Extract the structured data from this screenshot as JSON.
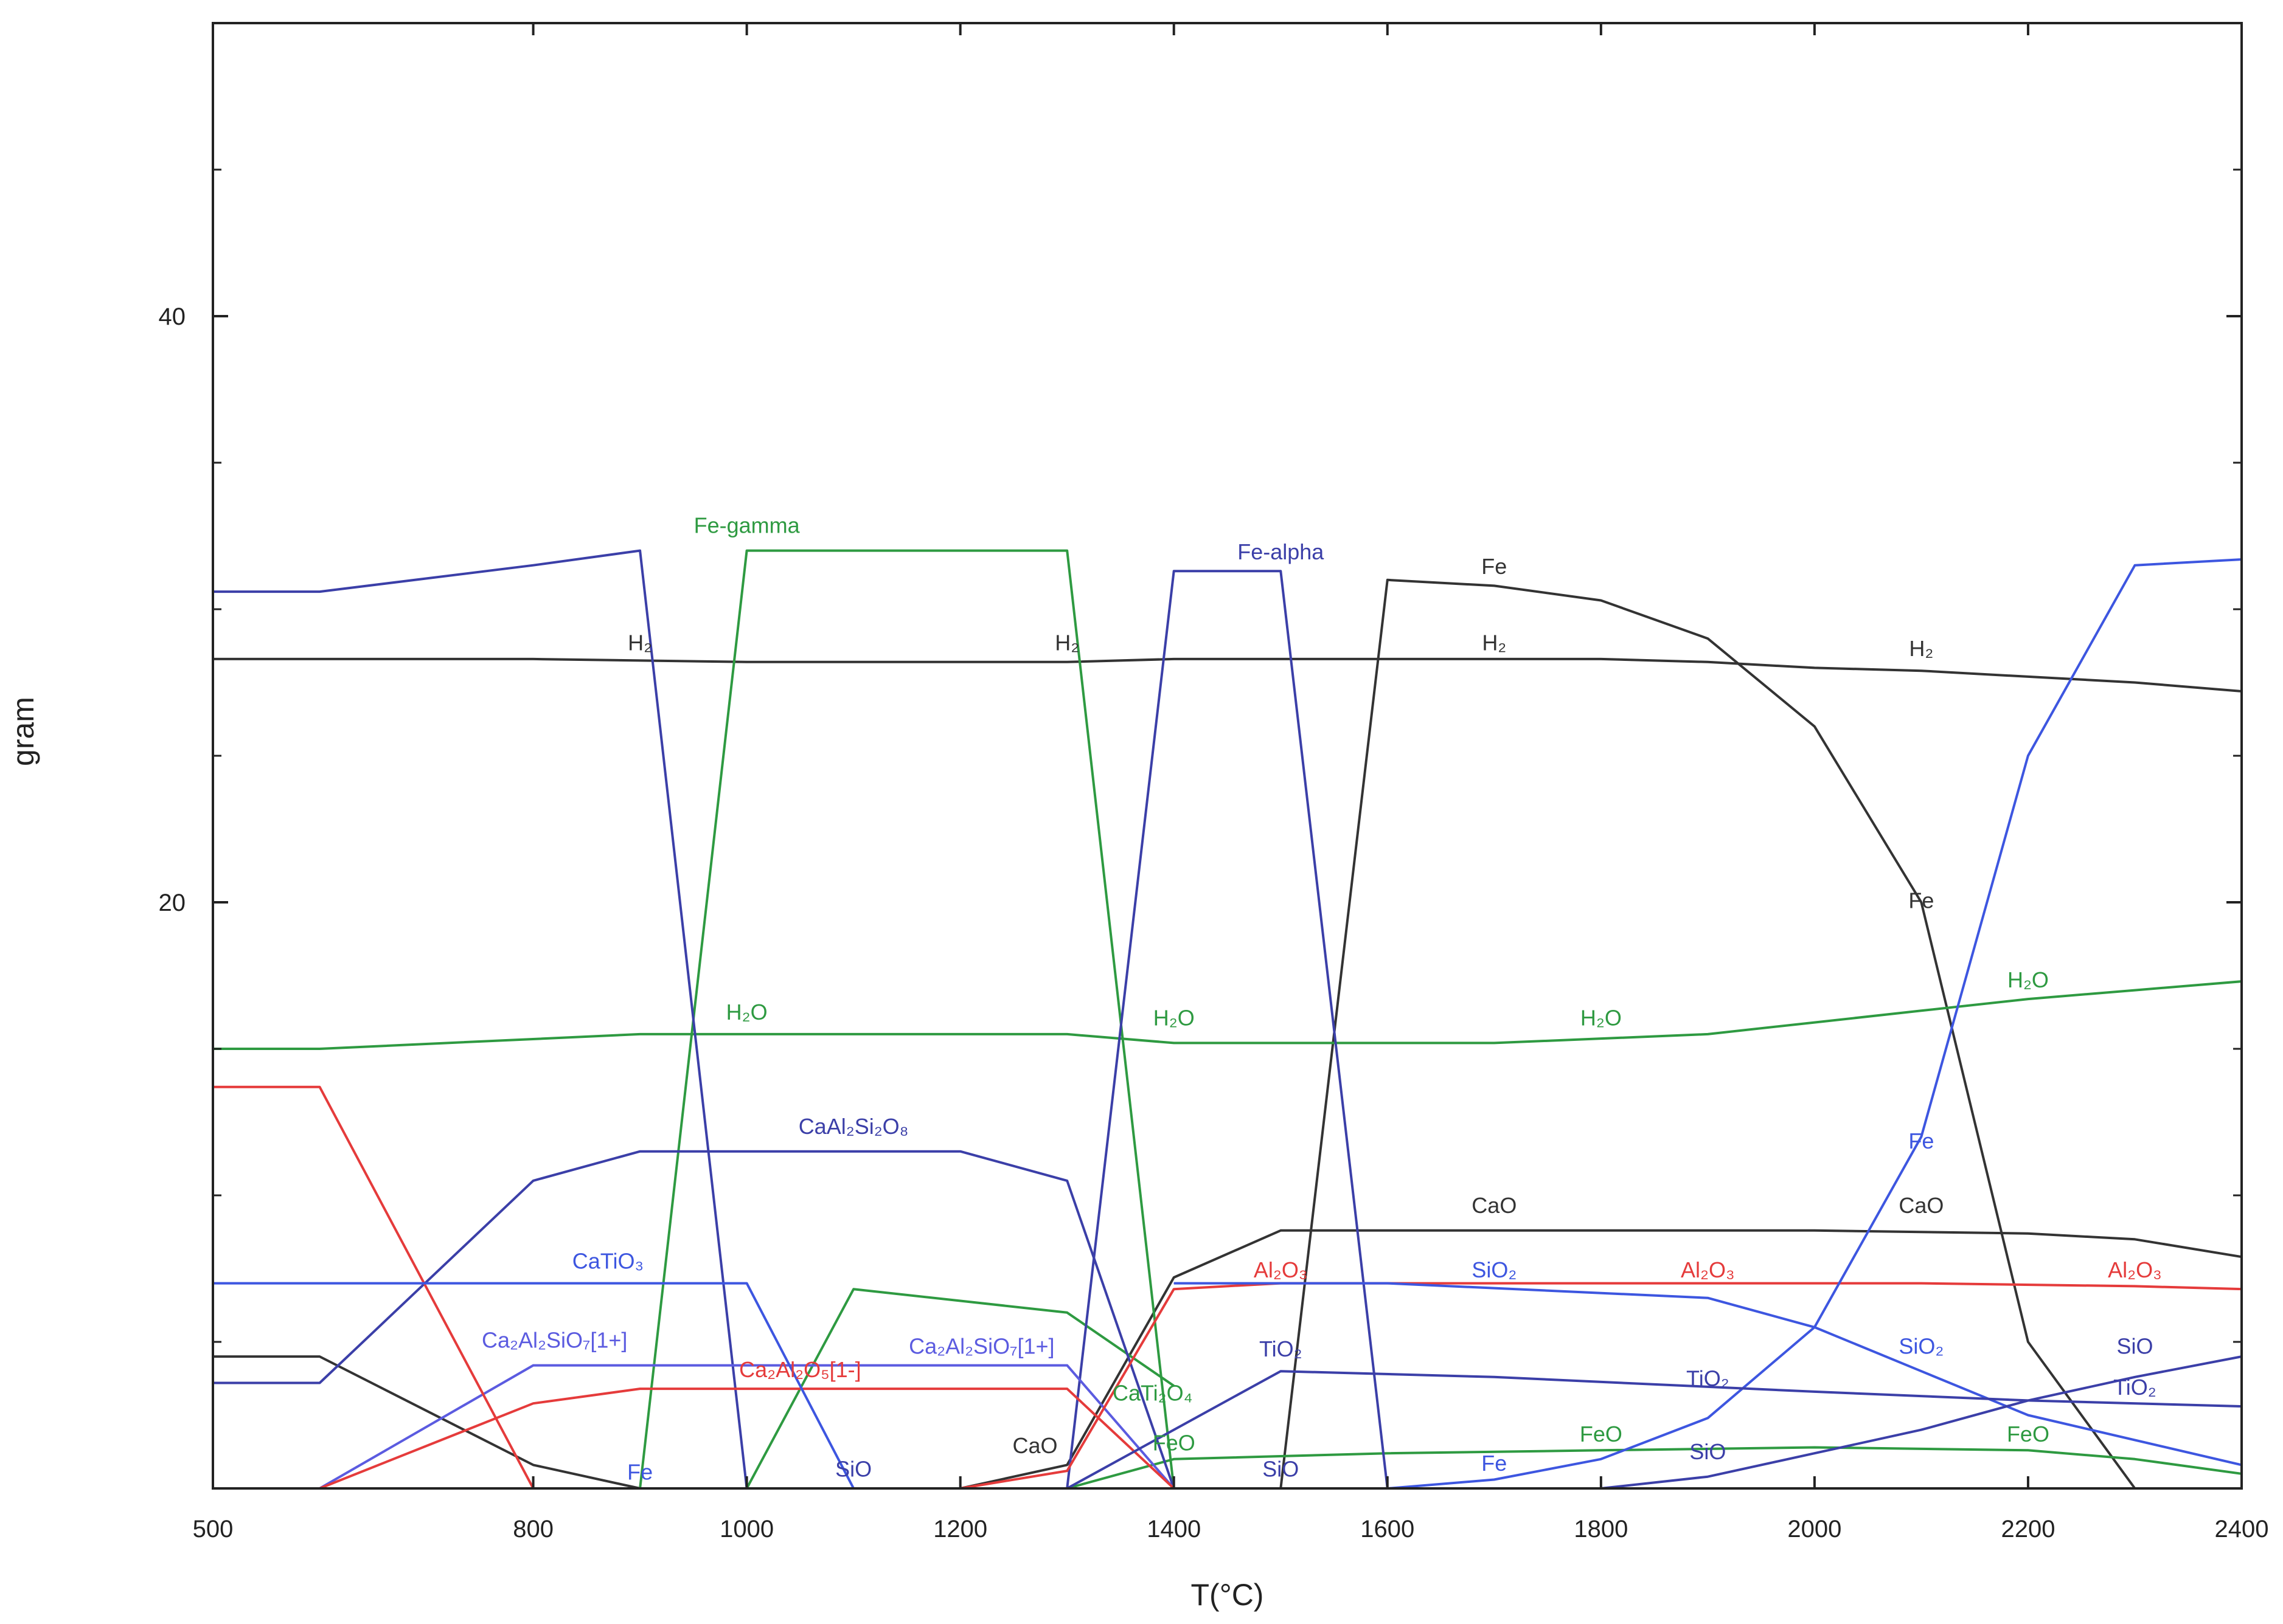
{
  "chart_data": {
    "type": "line",
    "xlabel": "T(°C)",
    "ylabel": "gram",
    "xlim": [
      500,
      2400
    ],
    "ylim": [
      0,
      50
    ],
    "xticks": [
      500,
      800,
      1000,
      1200,
      1400,
      1600,
      1800,
      2000,
      2200,
      2400
    ],
    "yticks": [
      20,
      40
    ],
    "grid": false,
    "series": [
      {
        "label": "H₂",
        "color": "#333333",
        "x": [
          500,
          800,
          1000,
          1300,
          1400,
          1600,
          1800,
          1900,
          2000,
          2100,
          2200,
          2300,
          2400
        ],
        "y": [
          28.3,
          28.3,
          28.2,
          28.2,
          28.3,
          28.3,
          28.3,
          28.2,
          28.0,
          27.9,
          27.7,
          27.5,
          27.2
        ],
        "labels": [
          {
            "x": 900,
            "y": 28.6
          },
          {
            "x": 1300,
            "y": 28.6
          },
          {
            "x": 1700,
            "y": 28.6
          },
          {
            "x": 2100,
            "y": 28.4
          }
        ]
      },
      {
        "label": "Fe",
        "color": "#333333",
        "x": [
          1500,
          1600,
          1700,
          1800,
          1900,
          2000,
          2100,
          2200,
          2300
        ],
        "y": [
          0,
          31.0,
          30.8,
          30.3,
          29.0,
          26.0,
          20.0,
          5.0,
          0
        ],
        "labels": [
          {
            "x": 1700,
            "y": 31.2
          },
          {
            "x": 2100,
            "y": 19.8
          }
        ]
      },
      {
        "label": "CaO",
        "color": "#333333",
        "x": [
          500,
          600,
          800,
          900,
          1200,
          1300,
          1400,
          1500,
          1700,
          2000,
          2200,
          2300,
          2400
        ],
        "y": [
          4.5,
          4.5,
          0.8,
          0,
          0,
          0.8,
          7.2,
          8.8,
          8.8,
          8.8,
          8.7,
          8.5,
          7.9
        ],
        "labels": [
          {
            "x": 1700,
            "y": 9.4
          },
          {
            "x": 2100,
            "y": 9.4
          },
          {
            "x": 1270,
            "y": 1.2
          }
        ]
      },
      {
        "label": "Fe-gamma",
        "color": "#2e9a41",
        "x": [
          900,
          1000,
          1300,
          1400
        ],
        "y": [
          0,
          32.0,
          32.0,
          0
        ],
        "labels": [
          {
            "x": 1000,
            "y": 32.6
          }
        ]
      },
      {
        "label": "H₂O",
        "color": "#2e9a41",
        "x": [
          500,
          600,
          900,
          1300,
          1400,
          1600,
          1700,
          1900,
          2000,
          2100,
          2200,
          2300,
          2400
        ],
        "y": [
          15.0,
          15.0,
          15.5,
          15.5,
          15.2,
          15.2,
          15.2,
          15.5,
          15.9,
          16.3,
          16.7,
          17.0,
          17.3
        ],
        "labels": [
          {
            "x": 1000,
            "y": 16.0
          },
          {
            "x": 1400,
            "y": 15.8
          },
          {
            "x": 1800,
            "y": 15.8
          },
          {
            "x": 2200,
            "y": 17.1
          }
        ]
      },
      {
        "label": "CaTi₂O₄",
        "color": "#2e9a41",
        "x": [
          1000,
          1100,
          1200,
          1300,
          1400
        ],
        "y": [
          0,
          6.8,
          6.4,
          6.0,
          3.5
        ],
        "labels": [
          {
            "x": 1380,
            "y": 3.0
          }
        ]
      },
      {
        "label": "FeO",
        "color": "#2e9a41",
        "x": [
          1300,
          1400,
          1600,
          1800,
          2000,
          2200,
          2300,
          2400
        ],
        "y": [
          0,
          1.0,
          1.2,
          1.3,
          1.4,
          1.3,
          1.0,
          0.5
        ],
        "labels": [
          {
            "x": 1400,
            "y": 1.3
          },
          {
            "x": 1800,
            "y": 1.6
          },
          {
            "x": 2200,
            "y": 1.6
          }
        ]
      },
      {
        "label": "Fe-alpha",
        "color": "#3b3fa8",
        "x": [
          500,
          600,
          800,
          900,
          1000,
          1300,
          1400,
          1500,
          1600
        ],
        "y": [
          30.6,
          30.6,
          31.5,
          32.0,
          0,
          0,
          31.3,
          31.3,
          0
        ],
        "labels": [
          {
            "x": 1500,
            "y": 31.7
          }
        ]
      },
      {
        "label": "CaAl₂Si₂O₈",
        "color": "#3b3fa8",
        "x": [
          500,
          600,
          800,
          900,
          1200,
          1300,
          1400
        ],
        "y": [
          3.6,
          3.6,
          10.5,
          11.5,
          11.5,
          10.5,
          0
        ],
        "labels": [
          {
            "x": 1100,
            "y": 12.1
          }
        ]
      },
      {
        "label": "Ca₂Al₂SiO₇[1+]",
        "color": "#5b5be0",
        "x": [
          600,
          800,
          1300,
          1400
        ],
        "y": [
          0,
          4.2,
          4.2,
          0
        ],
        "labels": [
          {
            "x": 820,
            "y": 4.8
          },
          {
            "x": 1220,
            "y": 4.6
          }
        ]
      },
      {
        "label": "Ca₂Al₂O₅[1-]",
        "color": "#e53b3b",
        "x": [
          600,
          800,
          900,
          1300,
          1400
        ],
        "y": [
          0,
          2.9,
          3.4,
          3.4,
          0
        ],
        "labels": [
          {
            "x": 1050,
            "y": 3.8
          }
        ]
      },
      {
        "label": "Al₂O₃",
        "color": "#e53b3b",
        "x": [
          500,
          600,
          800,
          1200,
          1300,
          1400,
          1500,
          1800,
          2100,
          2300,
          2400
        ],
        "y": [
          13.7,
          13.7,
          0,
          0,
          0.6,
          6.8,
          7.0,
          7.0,
          7.0,
          6.9,
          6.8
        ],
        "labels": [
          {
            "x": 1500,
            "y": 7.2
          },
          {
            "x": 1900,
            "y": 7.2
          },
          {
            "x": 2300,
            "y": 7.2
          }
        ]
      },
      {
        "label": "CaTiO₃",
        "color": "#3d56e0",
        "x": [
          500,
          800,
          1000,
          1100,
          1200
        ],
        "y": [
          7.0,
          7.0,
          7.0,
          0,
          0
        ],
        "labels": [
          {
            "x": 870,
            "y": 7.5
          }
        ]
      },
      {
        "label": "Fe (blue)",
        "color": "#3d56e0",
        "x": [
          1600,
          1700,
          1800,
          1900,
          2000,
          2100,
          2200,
          2300,
          2400
        ],
        "y": [
          0,
          0.3,
          1.0,
          2.4,
          5.5,
          12.0,
          25.0,
          31.5,
          31.7
        ],
        "labels": [
          {
            "x": 900,
            "y": 0.3
          },
          {
            "x": 1700,
            "y": 0.6
          },
          {
            "x": 2100,
            "y": 11.6
          }
        ]
      },
      {
        "label": "SiO₂",
        "color": "#3d56e0",
        "x": [
          1400,
          1600,
          1900,
          2000,
          2100,
          2200,
          2400
        ],
        "y": [
          7.0,
          7.0,
          6.5,
          5.5,
          4.0,
          2.5,
          0.8
        ],
        "labels": [
          {
            "x": 1700,
            "y": 7.2
          },
          {
            "x": 2100,
            "y": 4.6
          }
        ]
      },
      {
        "label": "TiO₂",
        "color": "#3b3fa8",
        "x": [
          1300,
          1400,
          1500,
          1700,
          2000,
          2200,
          2400
        ],
        "y": [
          0,
          2.0,
          4.0,
          3.8,
          3.3,
          3.0,
          2.8
        ],
        "labels": [
          {
            "x": 1500,
            "y": 4.5
          },
          {
            "x": 1900,
            "y": 3.5
          },
          {
            "x": 2300,
            "y": 3.2
          }
        ]
      },
      {
        "label": "SiO",
        "color": "#3b3fa8",
        "x": [
          1800,
          1900,
          2000,
          2100,
          2200,
          2300,
          2400
        ],
        "y": [
          0,
          0.4,
          1.2,
          2.0,
          3.0,
          3.8,
          4.5
        ],
        "labels": [
          {
            "x": 1100,
            "y": 0.4
          },
          {
            "x": 1500,
            "y": 0.4
          },
          {
            "x": 1900,
            "y": 1.0
          },
          {
            "x": 2300,
            "y": 4.6
          }
        ]
      }
    ]
  }
}
